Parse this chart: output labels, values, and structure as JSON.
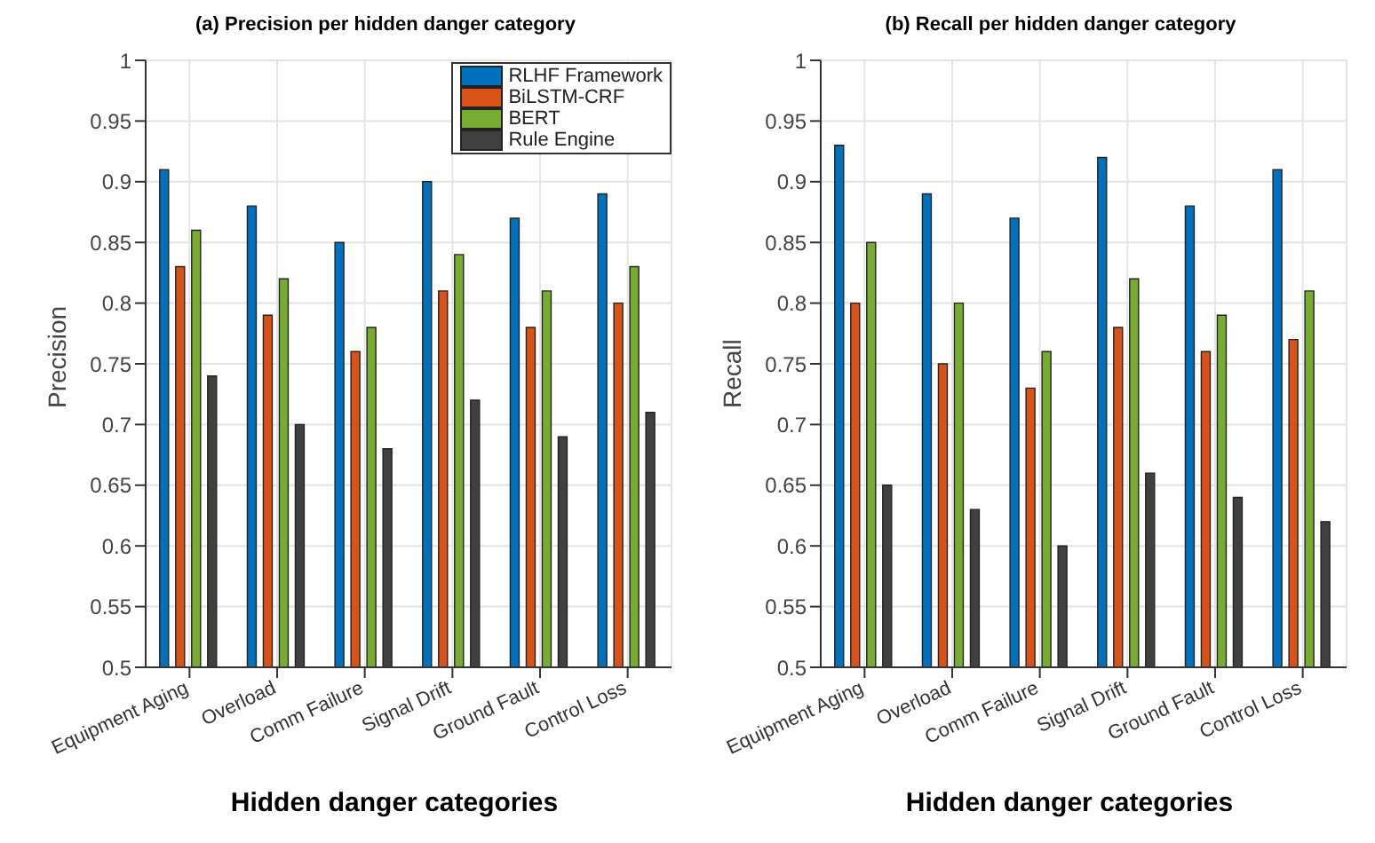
{
  "chart_data": [
    {
      "type": "bar",
      "title": "(a) Precision per hidden danger category",
      "xlabel": "Hidden danger categories",
      "ylabel": "Precision",
      "categories": [
        "Equipment Aging",
        "Overload",
        "Comm Failure",
        "Signal Drift",
        "Ground Fault",
        "Control Loss"
      ],
      "series": [
        {
          "name": "RLHF Framework",
          "color": "#0072bd",
          "values": [
            0.91,
            0.88,
            0.85,
            0.9,
            0.87,
            0.89
          ]
        },
        {
          "name": "BiLSTM-CRF",
          "color": "#d95319",
          "values": [
            0.83,
            0.79,
            0.76,
            0.81,
            0.78,
            0.8
          ]
        },
        {
          "name": "BERT",
          "color": "#77ac30",
          "values": [
            0.86,
            0.82,
            0.78,
            0.84,
            0.81,
            0.83
          ]
        },
        {
          "name": "Rule Engine",
          "color": "#404040",
          "values": [
            0.74,
            0.7,
            0.68,
            0.72,
            0.69,
            0.71
          ]
        }
      ],
      "ylim": [
        0.5,
        1
      ],
      "yticks": [
        0.5,
        0.55,
        0.6,
        0.65,
        0.7,
        0.75,
        0.8,
        0.85,
        0.9,
        0.95,
        1
      ],
      "grid": true,
      "legend": "top right"
    },
    {
      "type": "bar",
      "title": "(b) Recall per hidden danger category",
      "xlabel": "Hidden danger categories",
      "ylabel": "Recall",
      "categories": [
        "Equipment Aging",
        "Overload",
        "Comm Failure",
        "Signal Drift",
        "Ground Fault",
        "Control Loss"
      ],
      "series": [
        {
          "color": "#0072bd",
          "values": [
            0.93,
            0.89,
            0.87,
            0.92,
            0.88,
            0.91
          ]
        },
        {
          "color": "#d95319",
          "values": [
            0.8,
            0.75,
            0.73,
            0.78,
            0.76,
            0.77
          ]
        },
        {
          "color": "#77ac30",
          "values": [
            0.85,
            0.8,
            0.76,
            0.82,
            0.79,
            0.81
          ]
        },
        {
          "color": "#404040",
          "values": [
            0.65,
            0.63,
            0.6,
            0.66,
            0.64,
            0.62
          ]
        }
      ],
      "ylim": [
        0.5,
        1
      ],
      "yticks": [
        0.5,
        0.55,
        0.6,
        0.65,
        0.7,
        0.75,
        0.8,
        0.85,
        0.9,
        0.95,
        1
      ],
      "grid": true,
      "legend": false
    }
  ]
}
